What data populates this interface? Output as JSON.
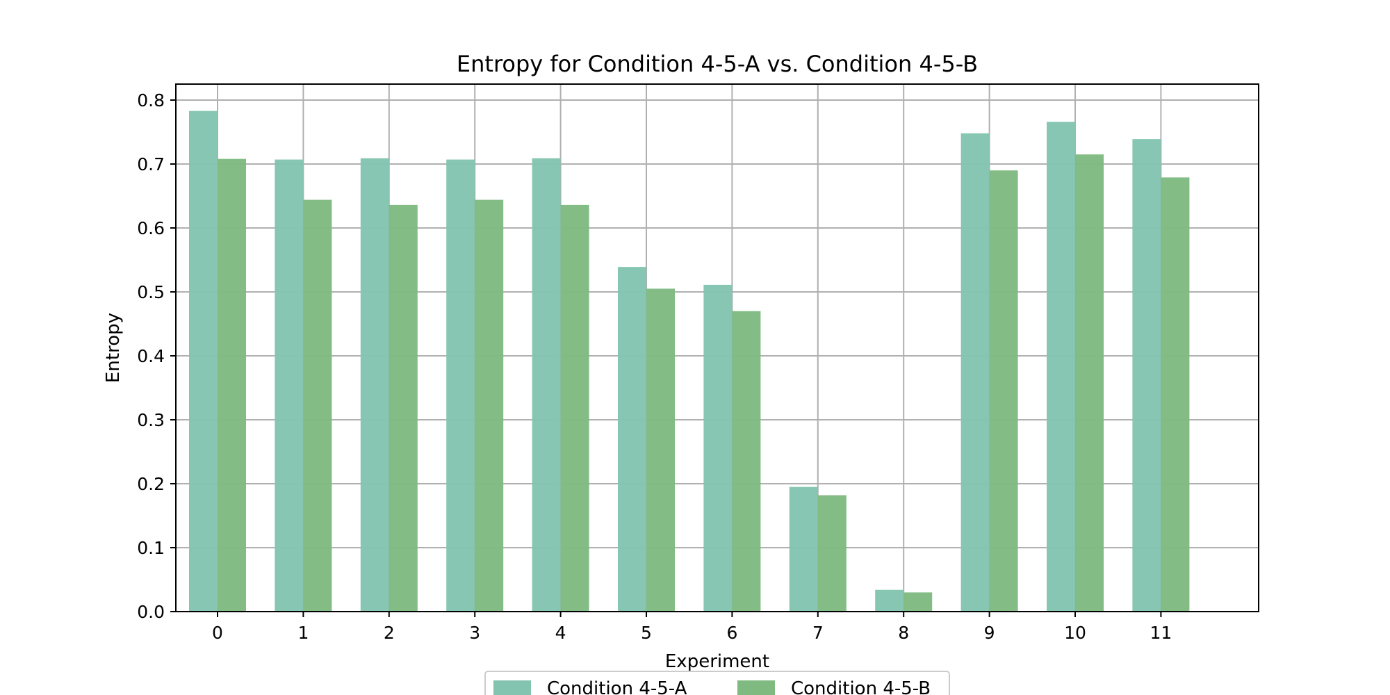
{
  "chart_data": {
    "type": "bar",
    "title": "Entropy for Condition 4-5-A vs. Condition 4-5-B",
    "xlabel": "Experiment",
    "ylabel": "Entropy",
    "categories": [
      "0",
      "1",
      "2",
      "3",
      "4",
      "5",
      "6",
      "7",
      "8",
      "9",
      "10",
      "11"
    ],
    "series": [
      {
        "name": "Condition 4-5-A",
        "color": "#82c4b0",
        "values": [
          0.783,
          0.707,
          0.709,
          0.707,
          0.709,
          0.539,
          0.511,
          0.195,
          0.034,
          0.748,
          0.766,
          0.739
        ]
      },
      {
        "name": "Condition 4-5-B",
        "color": "#7fba80",
        "values": [
          0.708,
          0.644,
          0.636,
          0.644,
          0.636,
          0.505,
          0.47,
          0.182,
          0.03,
          0.69,
          0.715,
          0.679
        ]
      }
    ],
    "ylim": [
      0,
      0.8
    ],
    "yticks": [
      "0.0",
      "0.1",
      "0.2",
      "0.3",
      "0.4",
      "0.5",
      "0.6",
      "0.7",
      "0.8"
    ],
    "grid": true,
    "legend_position": "bottom-center"
  }
}
